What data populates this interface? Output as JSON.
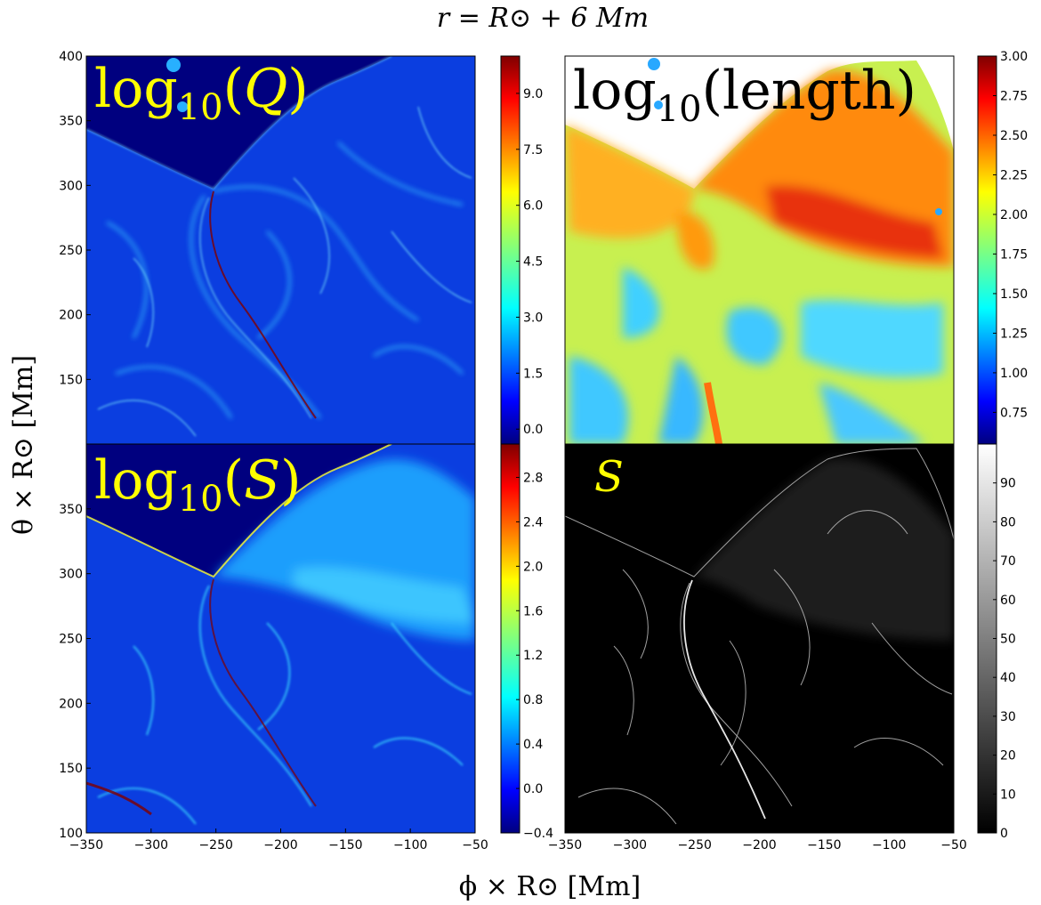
{
  "figure": {
    "title": "r = R⊙ + 6 Mm",
    "xlabel": "ϕ × R⊙ [Mm]",
    "ylabel": "θ × R⊙ [Mm]"
  },
  "chart_data": [
    {
      "type": "heatmap",
      "panel_label": "log10(Q)",
      "colormap": "jet",
      "xlim": [
        -350,
        -50
      ],
      "ylim": [
        100,
        400
      ],
      "y_ticks": [
        "400",
        "350",
        "300",
        "250",
        "200",
        "150"
      ],
      "x_ticks": [],
      "colorbar_range": [
        -0.4,
        10.0
      ],
      "colorbar_ticks": [
        "0.0",
        "1.5",
        "3.0",
        "4.5",
        "6.0",
        "7.5",
        "9.0"
      ],
      "colorbar_tick_values": [
        0.0,
        1.5,
        3.0,
        4.5,
        6.0,
        7.5,
        9.0
      ]
    },
    {
      "type": "heatmap",
      "panel_label": "log10(length)",
      "colormap": "jet",
      "xlim": [
        -350,
        -50
      ],
      "ylim": [
        100,
        400
      ],
      "y_ticks": [],
      "x_ticks": [],
      "colorbar_range": [
        0.55,
        3.0
      ],
      "colorbar_ticks": [
        "0.75",
        "1.00",
        "1.25",
        "1.50",
        "1.75",
        "2.00",
        "2.25",
        "2.50",
        "2.75",
        "3.00"
      ],
      "colorbar_tick_values": [
        0.75,
        1.0,
        1.25,
        1.5,
        1.75,
        2.0,
        2.25,
        2.5,
        2.75,
        3.0
      ]
    },
    {
      "type": "heatmap",
      "panel_label": "log10(S)",
      "colormap": "jet",
      "xlim": [
        -350,
        -50
      ],
      "ylim": [
        100,
        400
      ],
      "y_ticks": [
        "350",
        "300",
        "250",
        "200",
        "150",
        "100"
      ],
      "x_ticks": [
        "−350",
        "−300",
        "−250",
        "−200",
        "−150",
        "−100",
        "−50"
      ],
      "colorbar_range": [
        -0.4,
        3.1
      ],
      "colorbar_ticks": [
        "−0.4",
        "0.0",
        "0.4",
        "0.8",
        "1.2",
        "1.6",
        "2.0",
        "2.4",
        "2.8"
      ],
      "colorbar_tick_values": [
        -0.4,
        0.0,
        0.4,
        0.8,
        1.2,
        1.6,
        2.0,
        2.4,
        2.8
      ]
    },
    {
      "type": "heatmap",
      "panel_label": "S",
      "colormap": "gray",
      "xlim": [
        -350,
        -50
      ],
      "ylim": [
        100,
        400
      ],
      "y_ticks": [],
      "x_ticks": [
        "−350",
        "−300",
        "−250",
        "−200",
        "−150",
        "−100",
        "−50"
      ],
      "colorbar_range": [
        0,
        100
      ],
      "colorbar_ticks": [
        "0",
        "10",
        "20",
        "30",
        "40",
        "50",
        "60",
        "70",
        "80",
        "90"
      ],
      "colorbar_tick_values": [
        0,
        10,
        20,
        30,
        40,
        50,
        60,
        70,
        80,
        90
      ]
    }
  ],
  "colors": {
    "panel_label": "#ffff00",
    "jet_low": "#00007f",
    "jet_high": "#7f0000",
    "field_blue": "#0a3fd6",
    "field_white_region": "#ffffff"
  }
}
